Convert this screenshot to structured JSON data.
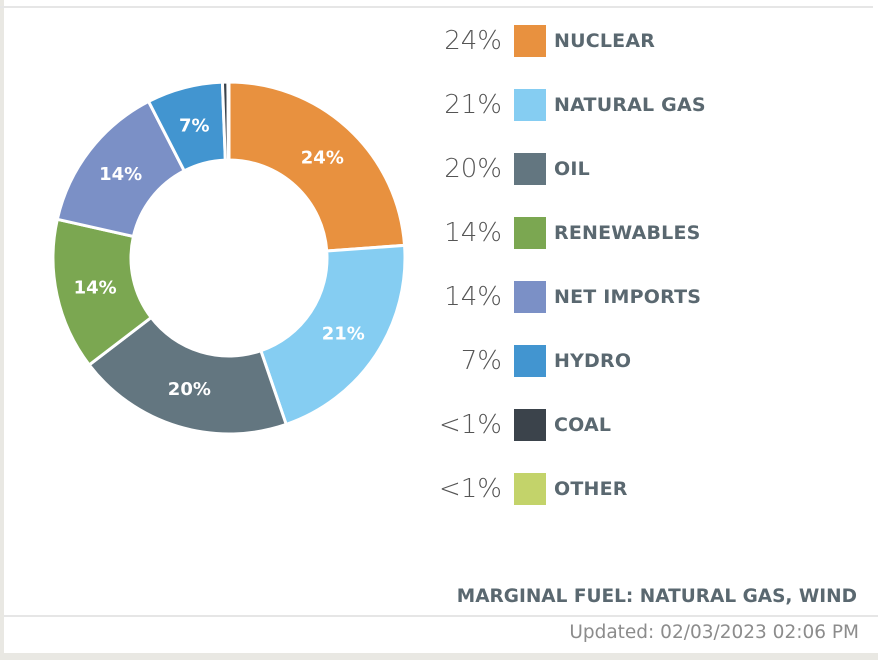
{
  "chart_data": {
    "type": "pie",
    "variant": "donut",
    "legend_position": "right",
    "slices": [
      {
        "name": "NUCLEAR",
        "value": 24,
        "display": "24%",
        "color": "#e8913f"
      },
      {
        "name": "NATURAL GAS",
        "value": 21,
        "display": "21%",
        "color": "#85cdf2"
      },
      {
        "name": "OIL",
        "value": 20,
        "display": "20%",
        "color": "#637680"
      },
      {
        "name": "RENEWABLES",
        "value": 14,
        "display": "14%",
        "color": "#7ba751"
      },
      {
        "name": "NET IMPORTS",
        "value": 14,
        "display": "14%",
        "color": "#7b90c6"
      },
      {
        "name": "HYDRO",
        "value": 7,
        "display": "7%",
        "color": "#4295d0"
      },
      {
        "name": "COAL",
        "value": 0.5,
        "display": "<1%",
        "color": "#3b434b"
      },
      {
        "name": "OTHER",
        "value": 0.1,
        "display": "<1%",
        "color": "#c3d36a"
      }
    ]
  },
  "footer": {
    "marginal_fuel": "MARGINAL FUEL: NATURAL GAS, WIND",
    "updated": "Updated: 02/03/2023 02:06 PM"
  }
}
